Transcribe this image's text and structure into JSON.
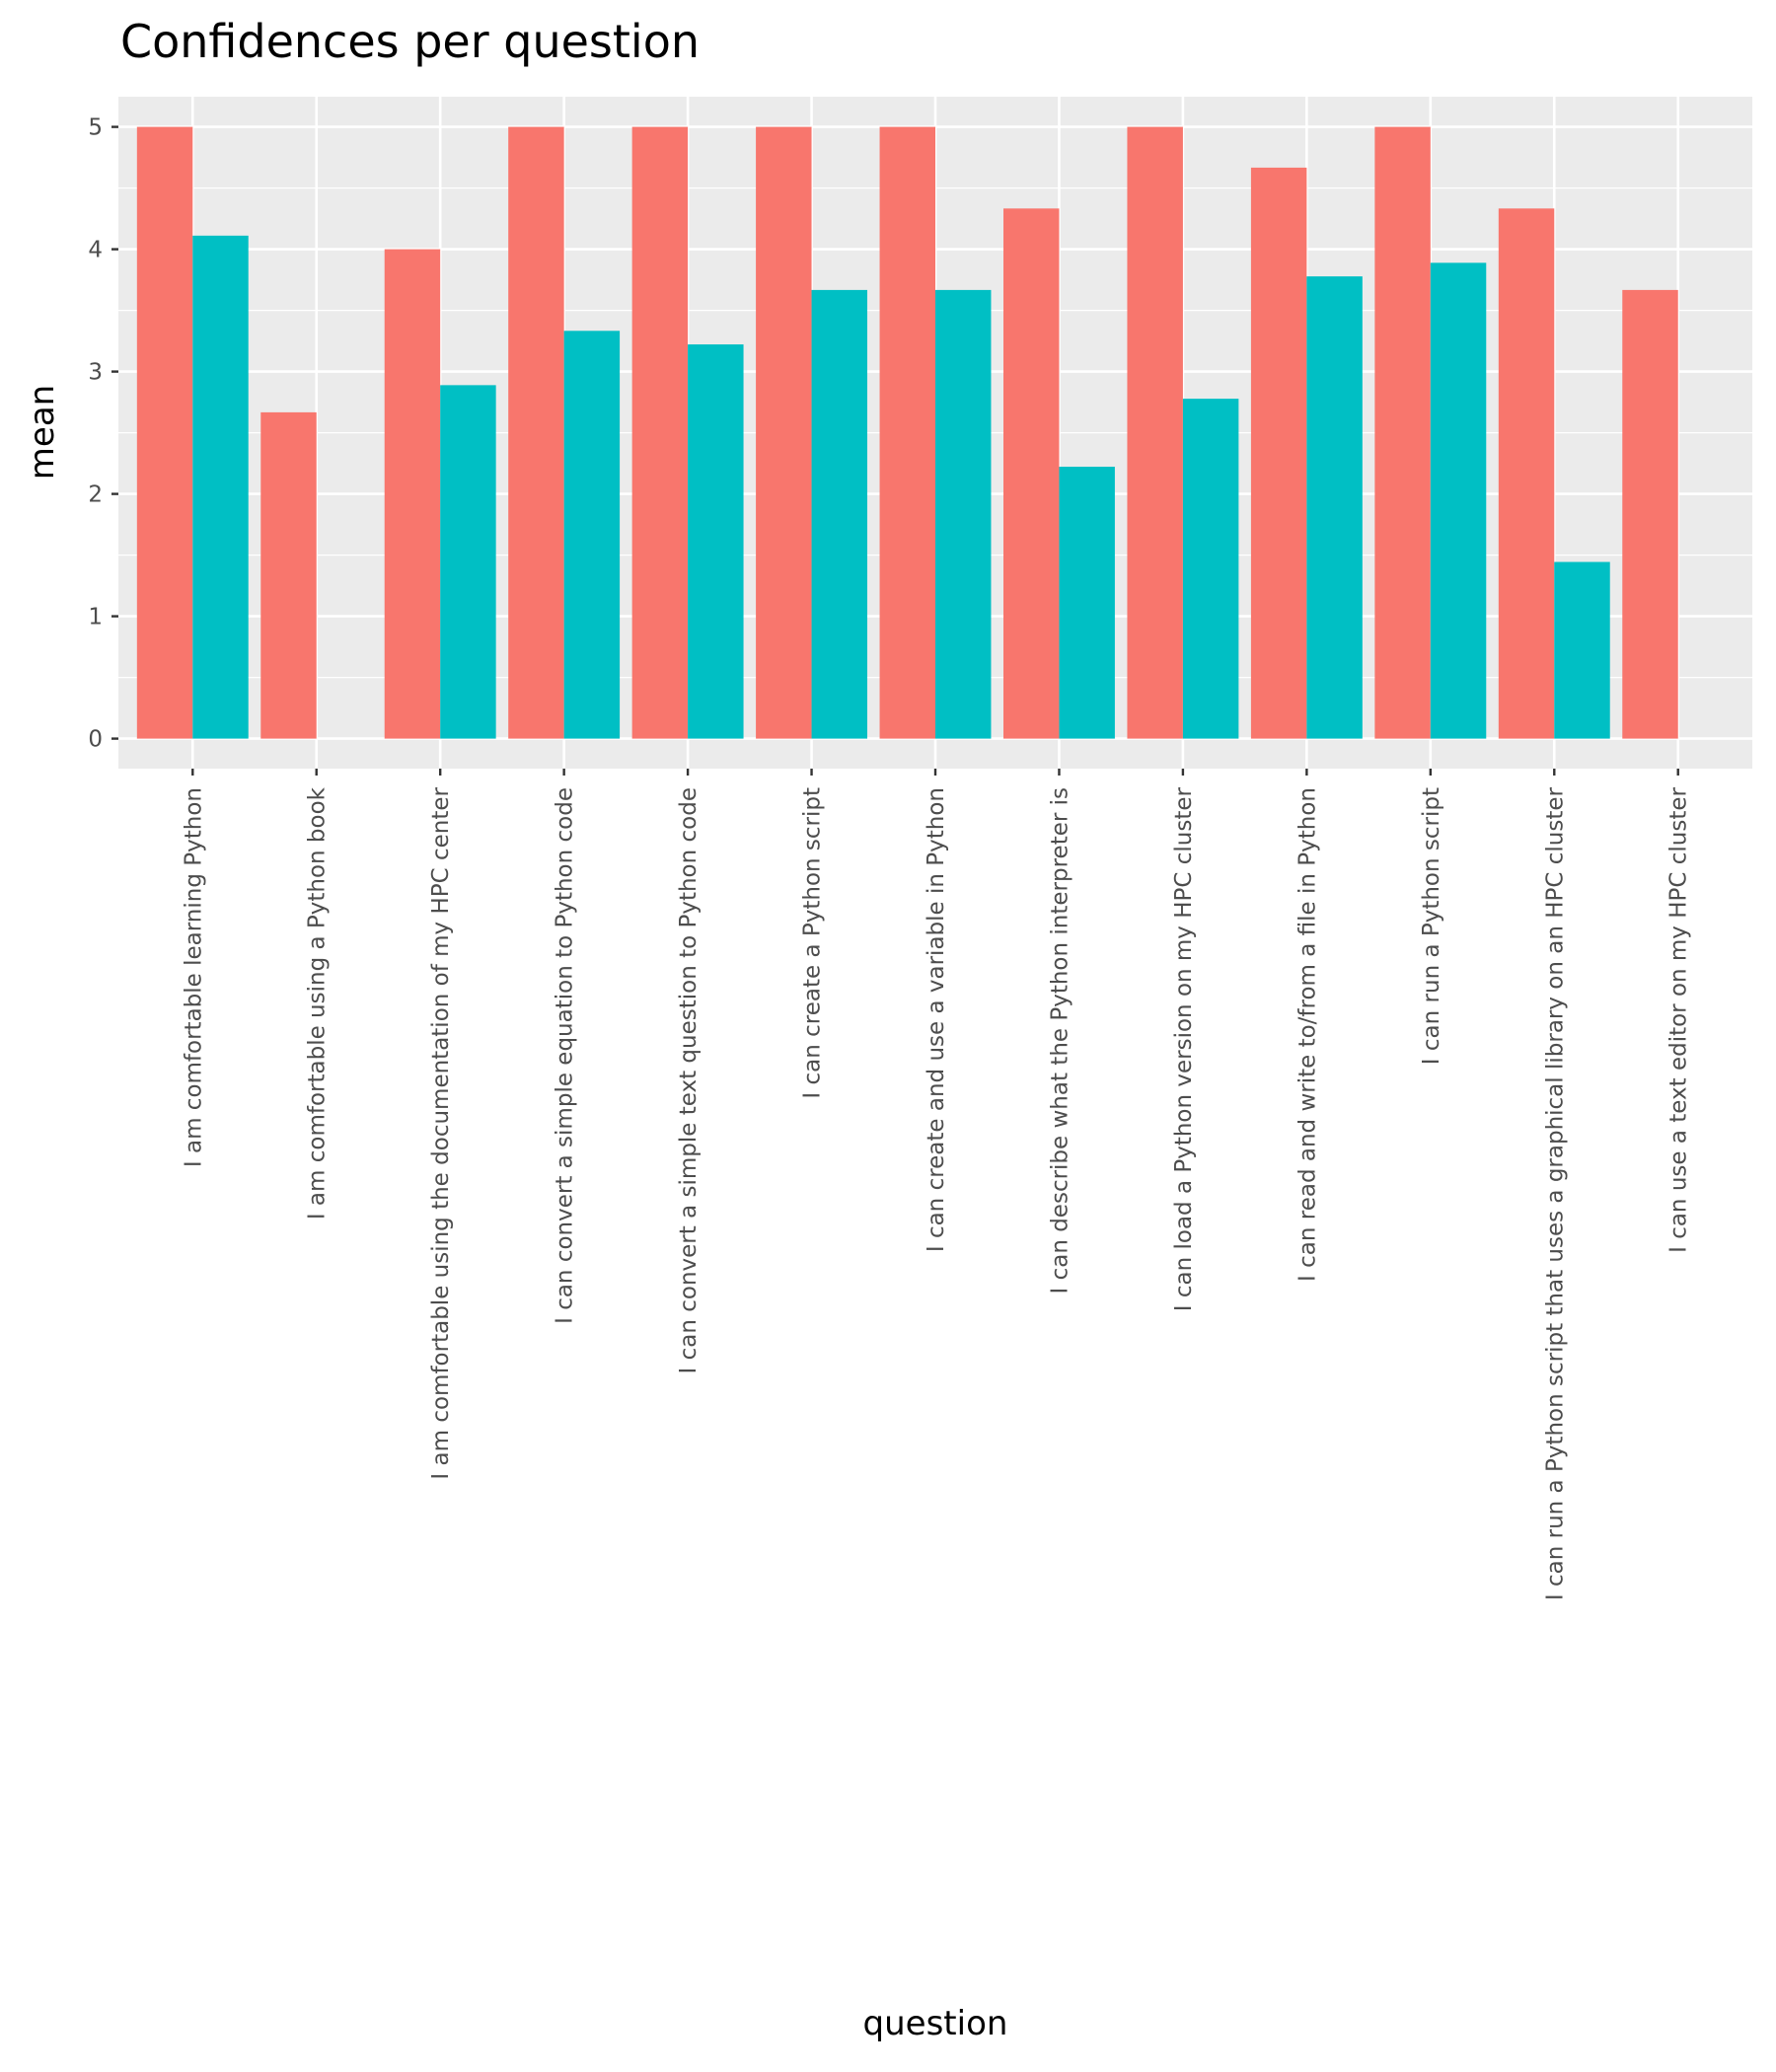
{
  "chart_data": {
    "type": "bar",
    "title": "Confidences per question",
    "xlabel": "question",
    "ylabel": "mean",
    "ylim": [
      0,
      5
    ],
    "yticks": [
      "0",
      "1",
      "2",
      "3",
      "4",
      "5"
    ],
    "grid": true,
    "legend": "none",
    "colors": [
      "#F8766D",
      "#00BFC4"
    ],
    "categories": [
      "I am comfortable learning Python",
      "I am comfortable using a Python book",
      "I am comfortable using the documentation of my HPC center",
      "I can convert a simple equation to Python code",
      "I can convert a simple text question to Python code",
      "I can create a Python script",
      "I can create and use a variable in Python",
      "I can describe what the Python interpreter is",
      "I can load a Python version on my HPC cluster",
      "I can read and write to/from a file in Python",
      "I can run a Python script",
      "I can run a Python script that uses a graphical library on an HPC cluster",
      "I can use a text editor on my HPC cluster"
    ],
    "series": [
      {
        "values": [
          5,
          2.667,
          4,
          5,
          5,
          5,
          5,
          4.333,
          5,
          4.667,
          5,
          4.333,
          3.667
        ]
      },
      {
        "values": [
          4.111,
          null,
          2.889,
          3.333,
          3.222,
          3.667,
          3.667,
          2.222,
          2.778,
          3.778,
          3.889,
          1.444,
          null
        ]
      }
    ]
  }
}
